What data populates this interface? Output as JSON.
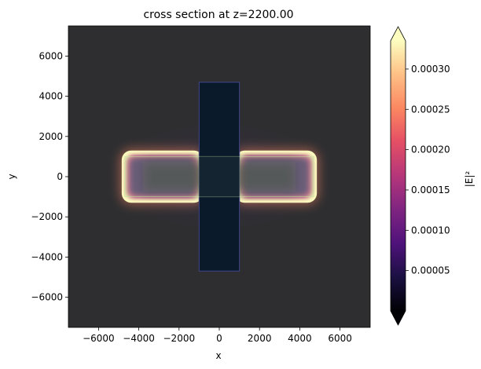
{
  "chart_data": {
    "type": "heatmap",
    "title": "cross section at z=2200.00",
    "xlabel": "x",
    "ylabel": "y",
    "xlim": [
      -7500,
      7500
    ],
    "ylim": [
      -7500,
      7500
    ],
    "xticks": [
      -6000,
      -4000,
      -2000,
      0,
      2000,
      4000,
      6000
    ],
    "yticks": [
      -6000,
      -4000,
      -2000,
      0,
      2000,
      4000,
      6000
    ],
    "xtick_labels": [
      "−6000",
      "−4000",
      "−2000",
      "0",
      "2000",
      "4000",
      "6000"
    ],
    "ytick_labels": [
      "−6000",
      "−4000",
      "−2000",
      "0",
      "2000",
      "4000",
      "6000"
    ],
    "grid": false,
    "colorbar": {
      "label": "|E|²",
      "colormap": "magma",
      "vmin": 0.0,
      "vmax": 0.000335,
      "extend": "both",
      "ticks": [
        5e-05,
        0.0001,
        0.00015,
        0.0002,
        0.00025,
        0.0003
      ],
      "tick_labels": [
        "0.00005",
        "0.00010",
        "0.00015",
        "0.00020",
        "0.00025",
        "0.00030"
      ]
    },
    "structures": [
      {
        "shape": "rect",
        "x": [
          -1000,
          1000
        ],
        "y": [
          -4700,
          4700
        ]
      },
      {
        "shape": "rect",
        "x": [
          -4700,
          4700
        ],
        "y": [
          -1000,
          1000
        ]
      }
    ],
    "field_features": [
      {
        "region": "left lobe ring",
        "x": [
          -4800,
          -1000
        ],
        "y": [
          -1300,
          1300
        ],
        "intensity": 0.00033
      },
      {
        "region": "right lobe ring",
        "x": [
          1000,
          4800
        ],
        "y": [
          -1300,
          1300
        ],
        "intensity": 0.00033
      },
      {
        "region": "arm interior",
        "x": [
          -4400,
          4400
        ],
        "y": [
          -900,
          900
        ],
        "intensity": 0.00012
      },
      {
        "region": "vertical bar",
        "x": [
          -1000,
          1000
        ],
        "y": [
          -4700,
          4700
        ],
        "intensity": 1e-05
      }
    ]
  },
  "colors": {
    "background_field": "#2e2e30",
    "structure_overlay": "#0b1a2a",
    "arm_overlay": "#c8e6a0"
  }
}
